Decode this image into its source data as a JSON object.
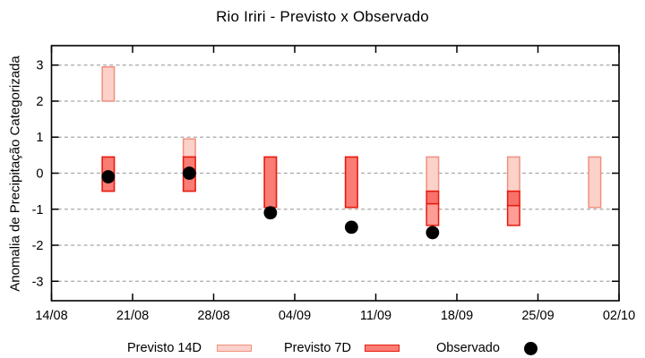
{
  "title": "Rio Iriri - Previsto x Observado",
  "colors": {
    "bar14_fill": "#fbd1ca",
    "bar14_border": "#f0907e",
    "bar7_fill": "#fa7d75",
    "bar7_border": "#e8190d",
    "bar7_overlap_fill": "#f8716a",
    "bar7_tail_fill": "#fc9d96",
    "observado_dot": "#000000",
    "grid": "#a8a8a8",
    "axis": "#000000",
    "background": "#ffffff"
  },
  "legend": {
    "items": [
      {
        "label": "Previsto 14D",
        "swatch": "bar14"
      },
      {
        "label": "Previsto 7D",
        "swatch": "bar7"
      },
      {
        "label": "Observado",
        "swatch": "dot"
      }
    ]
  },
  "chart_data": {
    "type": "bar",
    "subtype": "range-bars-with-scatter",
    "title": "Rio Iriri - Previsto x Observado",
    "xlabel": "",
    "ylabel": "Anomalia de Precipitação Categorizada",
    "x_tick_labels": [
      "14/08",
      "21/08",
      "28/08",
      "04/09",
      "11/09",
      "18/09",
      "25/09",
      "02/10"
    ],
    "x_tick_interval_days": 7,
    "x_range_days": 49,
    "y_ticks": [
      3,
      2,
      1,
      0,
      -1,
      -2,
      -3
    ],
    "ylim": [
      -3.54,
      3.54
    ],
    "grid": "horizontal dashed lines at every integer",
    "legend_position": "bottom",
    "bar_width_days": 1.04,
    "series": [
      {
        "name": "Previsto 14D",
        "kind": "range-bar",
        "style": "bar14",
        "points": [
          {
            "date": "19/08",
            "day": 4.9,
            "low": 2.0,
            "high": 2.95
          },
          {
            "date": "26/08",
            "day": 11.9,
            "low": 0.45,
            "high": 0.95
          },
          {
            "date": "16/09",
            "day": 32.9,
            "low": -0.5,
            "high": 0.45
          },
          {
            "date": "23/09",
            "day": 39.9,
            "low": -0.5,
            "high": 0.45
          },
          {
            "date": "30/09",
            "day": 46.9,
            "low": -0.95,
            "high": 0.45
          }
        ]
      },
      {
        "name": "Previsto 7D",
        "kind": "range-bar",
        "style": "bar7",
        "points": [
          {
            "date": "19/08",
            "day": 4.9,
            "low": -0.5,
            "high": 0.45
          },
          {
            "date": "26/08",
            "day": 11.9,
            "low": -0.5,
            "high": 0.45
          },
          {
            "date": "02/09",
            "day": 18.9,
            "low": -0.95,
            "high": 0.45
          },
          {
            "date": "09/09",
            "day": 25.9,
            "low": -0.95,
            "high": 0.45
          },
          {
            "date": "16/09",
            "day": 32.9,
            "low": -1.45,
            "high": -0.5,
            "split": -0.85
          },
          {
            "date": "23/09",
            "day": 39.9,
            "low": -1.45,
            "high": -0.5,
            "split": -0.9
          }
        ]
      },
      {
        "name": "Observado",
        "kind": "scatter",
        "points": [
          {
            "date": "19/08",
            "day": 4.9,
            "value": -0.1
          },
          {
            "date": "26/08",
            "day": 11.9,
            "value": 0.0
          },
          {
            "date": "02/09",
            "day": 18.9,
            "value": -1.1
          },
          {
            "date": "09/09",
            "day": 25.9,
            "value": -1.5
          },
          {
            "date": "16/09",
            "day": 32.9,
            "value": -1.65
          }
        ]
      }
    ]
  }
}
